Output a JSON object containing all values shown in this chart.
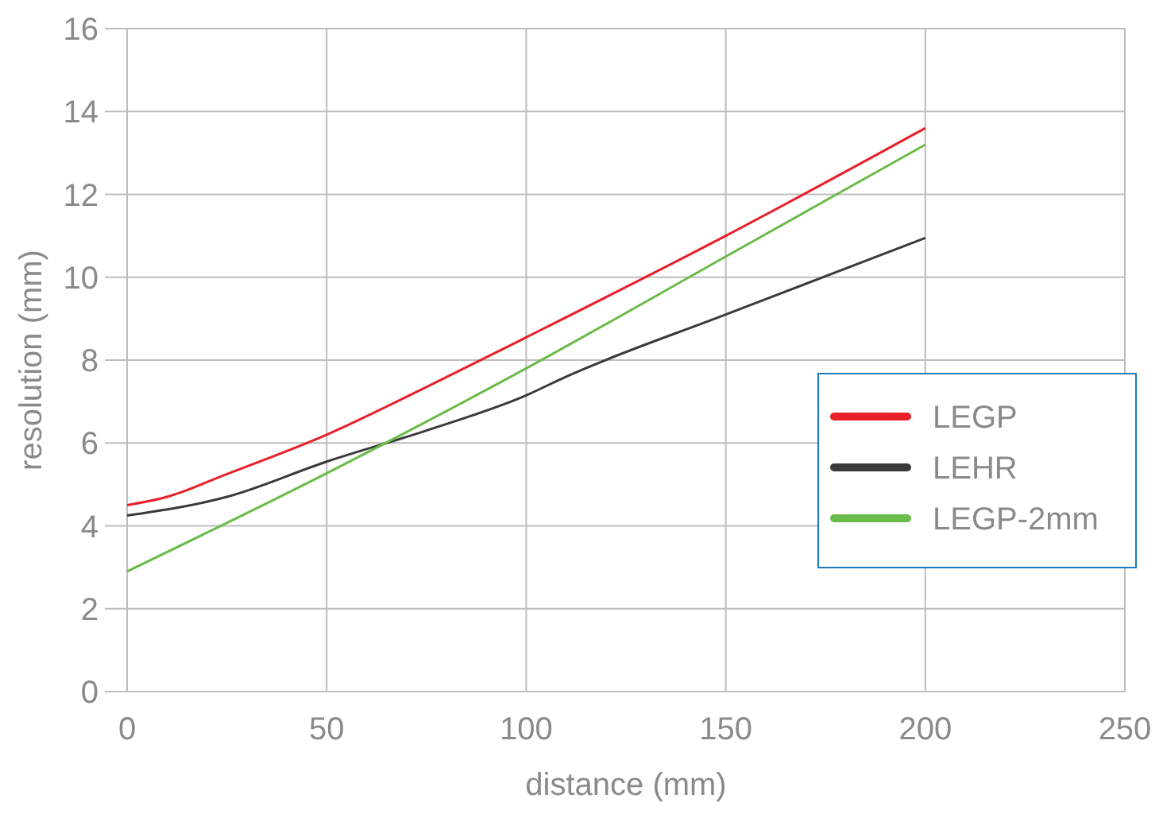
{
  "chart_data": {
    "type": "line",
    "xlabel": "distance (mm)",
    "ylabel": "resolution (mm)",
    "xlim": [
      0,
      250
    ],
    "xticks": [
      0,
      50,
      100,
      150,
      200,
      250
    ],
    "ylim": [
      0,
      16
    ],
    "yticks": [
      0,
      2,
      4,
      6,
      8,
      10,
      12,
      14,
      16
    ],
    "grid": true,
    "legend": "right",
    "marker": "none",
    "line_style": "solid",
    "series": [
      {
        "name": "LEGP",
        "color": "#e8202a",
        "x": [
          0,
          10,
          25,
          50,
          75,
          100,
          150,
          200
        ],
        "values": [
          4.5,
          4.7,
          5.25,
          6.2,
          7.35,
          8.55,
          11.0,
          13.6
        ]
      },
      {
        "name": "LEHR",
        "color": "#3a3a3a",
        "x": [
          0,
          25,
          50,
          75,
          100,
          110,
          150,
          200
        ],
        "values": [
          4.25,
          4.7,
          5.55,
          6.3,
          7.15,
          7.6,
          9.1,
          10.95
        ]
      },
      {
        "name": "LEGP-2mm",
        "color": "#6abb4a",
        "x": [
          0,
          50,
          100,
          150,
          200
        ],
        "values": [
          2.9,
          5.27,
          7.8,
          10.5,
          13.2
        ]
      }
    ]
  }
}
